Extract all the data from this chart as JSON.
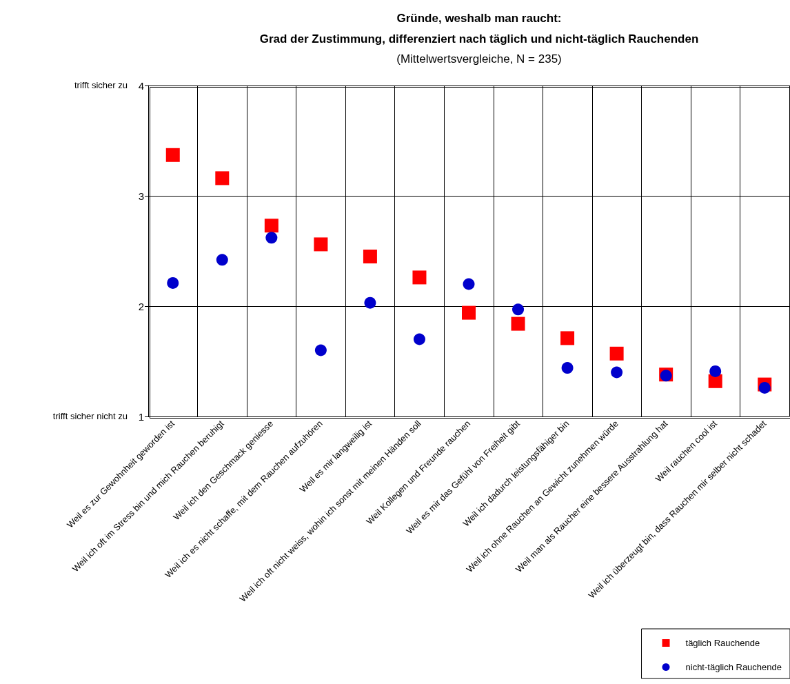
{
  "chart_data": {
    "type": "scatter",
    "title": "Gründe, weshalb man raucht:\nGrad der Zustimmung, differenziert nach täglich und nicht-täglich Rauchenden",
    "subtitle": "(Mittelwertsvergleiche, N = 235)",
    "categories": [
      "Weil es zur Gewohnheit geworden ist",
      "Weil ich oft im Stress bin und mich Rauchen beruhigt",
      "Weil ich den Geschmack geniesse",
      "Weil ich es nicht schaffe, mit dem Rauchen aufzuhören",
      "Weil es mir langweilig ist",
      "Weil ich oft nicht weiss, wohin ich sonst mit meinen Händen soll",
      "Weil Kollegen und Freunde rauchen",
      "Weil es mir das Gefühl von Freiheit gibt",
      "Weil ich dadurch leistungsfähiger bin",
      "Weil ich ohne Rauchen an Gewicht zunehmen würde",
      "Weil man als Raucher eine bessere Ausstrahlung hat",
      "Weil rauchen cool ist",
      "Weil ich überzeugt bin, dass Rauchen mir selber nicht schadet"
    ],
    "series": [
      {
        "name": "täglich Rauchende",
        "color": "#ff0000",
        "marker": "square",
        "values": [
          3.37,
          3.16,
          2.73,
          2.56,
          2.45,
          2.26,
          1.94,
          1.84,
          1.71,
          1.57,
          1.38,
          1.32,
          1.29
        ]
      },
      {
        "name": "nicht-täglich Rauchende",
        "color": "#0000cc",
        "marker": "circle",
        "values": [
          2.21,
          2.42,
          2.62,
          1.6,
          2.03,
          1.7,
          2.2,
          1.97,
          1.44,
          1.4,
          1.37,
          1.41,
          1.26
        ]
      }
    ],
    "ylim": [
      1,
      4
    ],
    "yticks": [
      1,
      2,
      3,
      4
    ],
    "grid": true,
    "legend": "bottom right",
    "annotations": [
      "trifft sicher zu",
      "trifft sicher nicht zu"
    ]
  }
}
